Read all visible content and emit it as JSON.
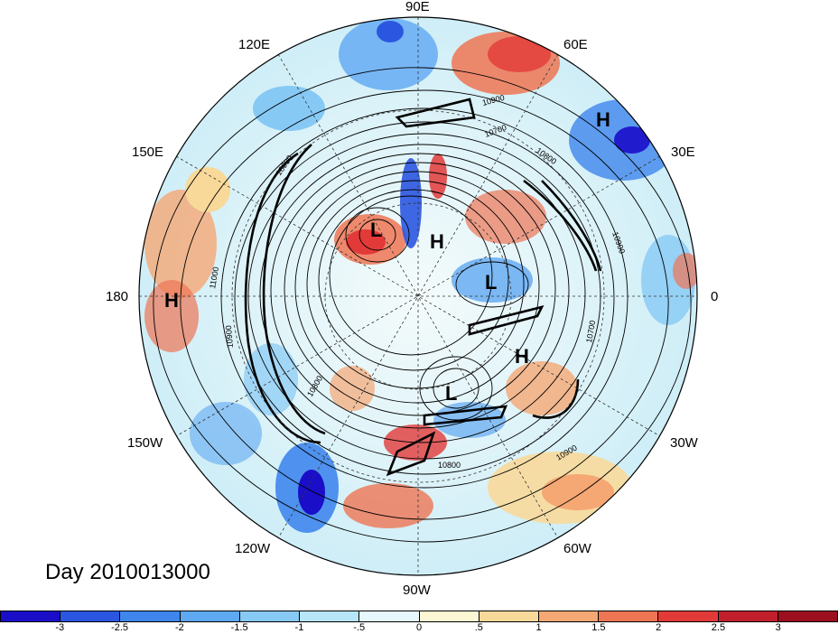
{
  "title": "Day 2010013000",
  "longitude_labels": {
    "lon_90e": "90E",
    "lon_60e": "60E",
    "lon_30e": "30E",
    "lon_0": "0",
    "lon_30w": "30W",
    "lon_60w": "60W",
    "lon_90w": "90W",
    "lon_120w": "120W",
    "lon_150w": "150W",
    "lon_180": "180",
    "lon_150e": "150E",
    "lon_120e": "120E"
  },
  "pressure_centers": [
    {
      "name": "high-center-siberia",
      "label": "H"
    },
    {
      "name": "high-center-pole",
      "label": "H"
    },
    {
      "name": "high-center-pacific",
      "label": "H"
    },
    {
      "name": "high-center-atlantic",
      "label": "H"
    },
    {
      "name": "low-center-east-asia",
      "label": "L"
    },
    {
      "name": "low-center-europe",
      "label": "L"
    },
    {
      "name": "low-center-north-america",
      "label": "L"
    }
  ],
  "contour_labels": [
    "10900",
    "10700",
    "10800",
    "10900",
    "10900",
    "11000",
    "10900",
    "10800",
    "10700",
    "10900",
    "10800"
  ],
  "colorbar": {
    "colors": [
      "#1a0ec9",
      "#2b57e0",
      "#3f86ec",
      "#5fa8f2",
      "#87c9f5",
      "#b6e6f7",
      "#e6f8fb",
      "#fbf6d4",
      "#f8d99a",
      "#f5a774",
      "#ee7554",
      "#e23a38",
      "#c11f2c",
      "#9c0f1f"
    ],
    "tick_labels": [
      "-3",
      "-2.5",
      "-2",
      "-1.5",
      "-1",
      "-.5",
      "0",
      ".5",
      "1",
      "1.5",
      "2",
      "2.5",
      "3"
    ]
  }
}
